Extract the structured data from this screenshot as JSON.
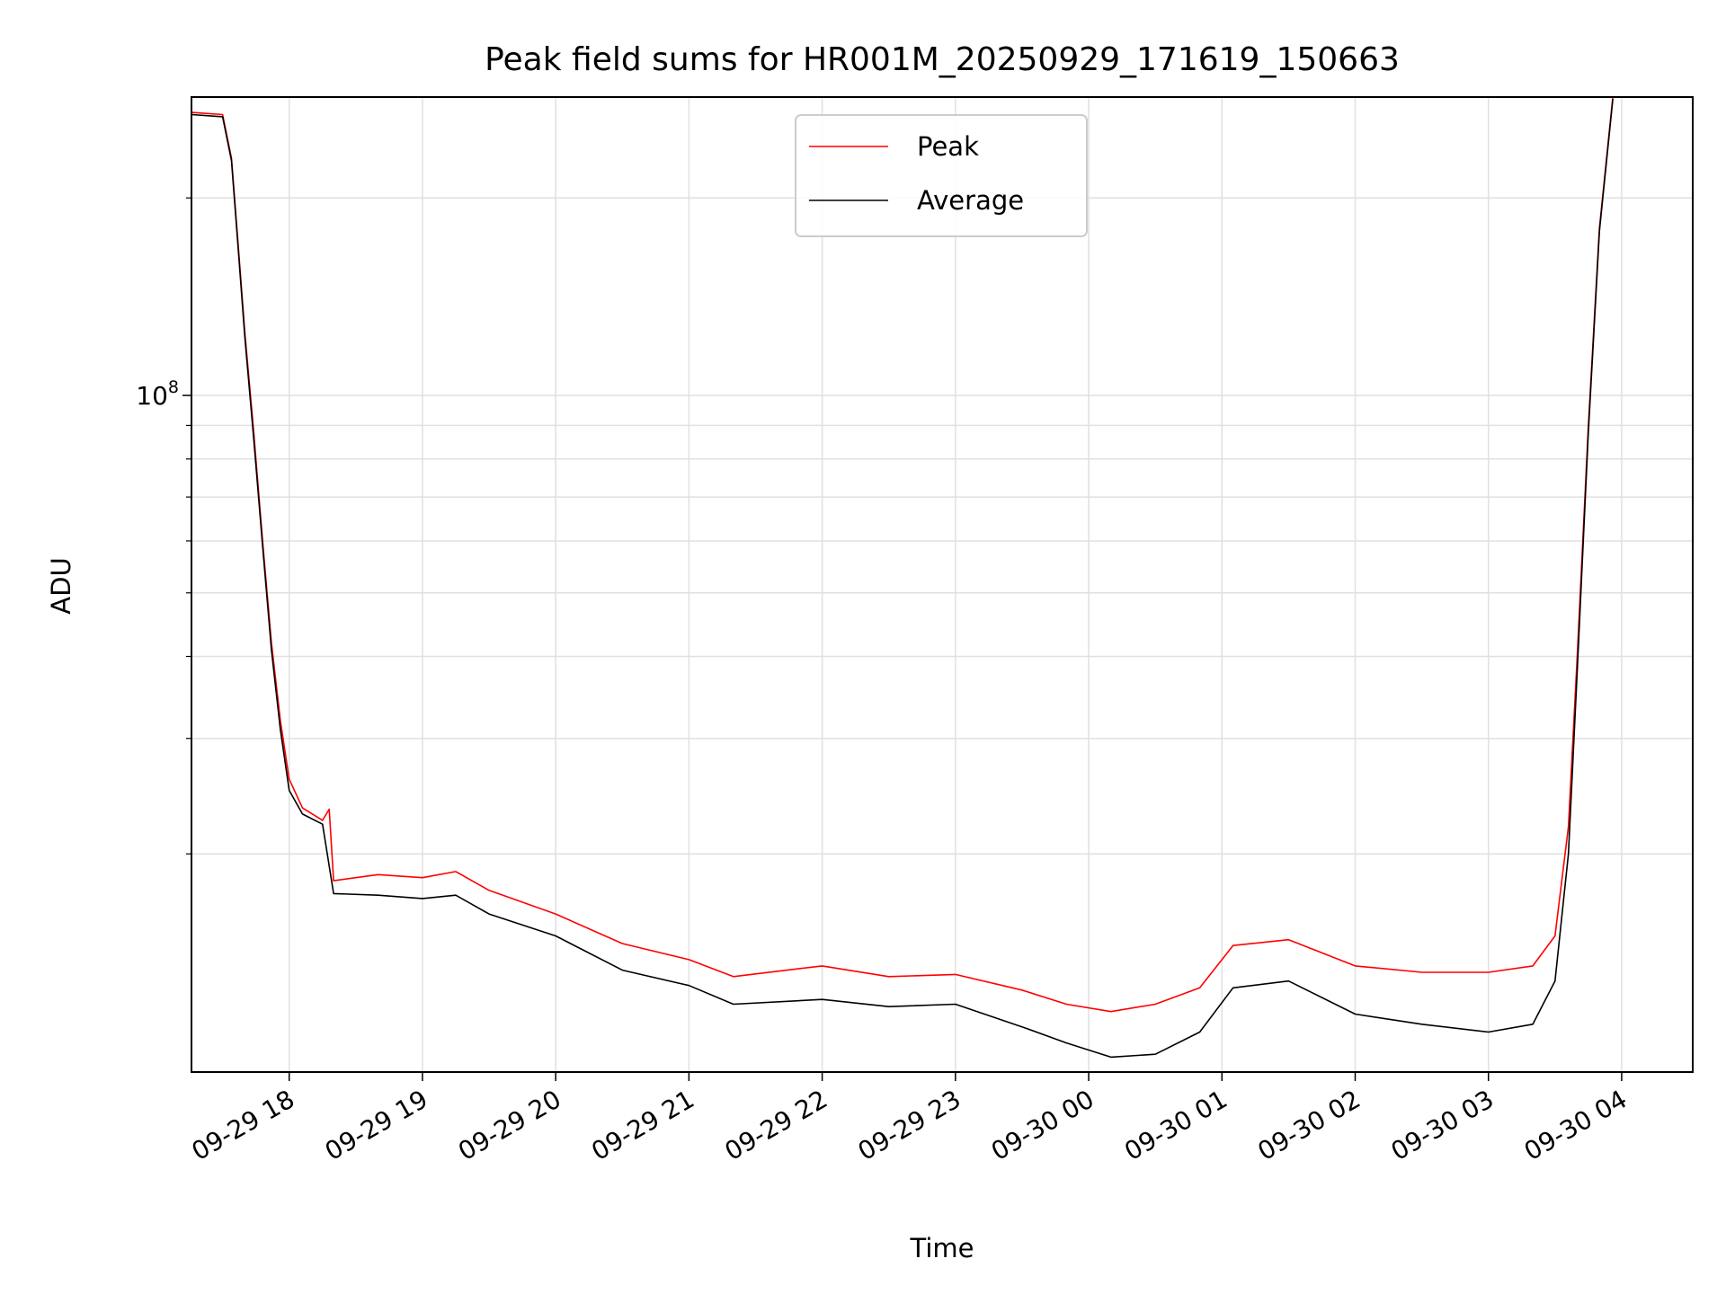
{
  "chart_data": {
    "type": "line",
    "title": "Peak field sums for HR001M_20250929_171619_150663",
    "xlabel": "Time",
    "ylabel": "ADU",
    "x_tick_labels": [
      "09-29 18",
      "09-29 19",
      "09-29 20",
      "09-29 21",
      "09-29 22",
      "09-29 23",
      "09-30 00",
      "09-30 01",
      "09-30 02",
      "09-30 03",
      "09-30 04"
    ],
    "y_tick_labels": [
      {
        "base": "10",
        "exp": "8"
      }
    ],
    "y_scale": "log",
    "ylim": [
      9300000.0,
      285000000.0
    ],
    "xlim": [
      "2025-09-29 17:16",
      "2025-09-30 04:32"
    ],
    "grid": true,
    "legend_position": "upper center",
    "colors": {
      "peak": "#ff0000",
      "average": "#000000",
      "grid": "#e0e0e0"
    },
    "series": [
      {
        "name": "Peak",
        "color": "#ff0000",
        "points": [
          [
            "2025-09-29 17:16",
            270000000
          ],
          [
            "2025-09-29 17:30",
            268000000
          ],
          [
            "2025-09-29 17:34",
            230000000
          ],
          [
            "2025-09-29 17:37",
            170000000
          ],
          [
            "2025-09-29 17:40",
            125000000
          ],
          [
            "2025-09-29 17:44",
            88000000
          ],
          [
            "2025-09-29 17:48",
            60000000
          ],
          [
            "2025-09-29 17:52",
            42000000
          ],
          [
            "2025-09-29 17:56",
            32000000
          ],
          [
            "2025-09-29 18:00",
            26000000
          ],
          [
            "2025-09-29 18:06",
            23500000
          ],
          [
            "2025-09-29 18:15",
            22500000
          ],
          [
            "2025-09-29 18:18",
            23400000
          ],
          [
            "2025-09-29 18:20",
            18200000
          ],
          [
            "2025-09-29 18:40",
            18600000
          ],
          [
            "2025-09-29 19:00",
            18400000
          ],
          [
            "2025-09-29 19:15",
            18800000
          ],
          [
            "2025-09-29 19:30",
            17600000
          ],
          [
            "2025-09-29 20:00",
            16200000
          ],
          [
            "2025-09-29 20:30",
            14600000
          ],
          [
            "2025-09-29 21:00",
            13800000
          ],
          [
            "2025-09-29 21:20",
            13000000
          ],
          [
            "2025-09-29 22:00",
            13500000
          ],
          [
            "2025-09-29 22:30",
            13000000
          ],
          [
            "2025-09-29 23:00",
            13100000
          ],
          [
            "2025-09-29 23:30",
            12400000
          ],
          [
            "2025-09-29 23:50",
            11800000
          ],
          [
            "2025-09-30 00:10",
            11500000
          ],
          [
            "2025-09-30 00:30",
            11800000
          ],
          [
            "2025-09-30 00:50",
            12500000
          ],
          [
            "2025-09-30 01:05",
            14500000
          ],
          [
            "2025-09-30 01:30",
            14800000
          ],
          [
            "2025-09-30 02:00",
            13500000
          ],
          [
            "2025-09-30 02:30",
            13200000
          ],
          [
            "2025-09-30 03:00",
            13200000
          ],
          [
            "2025-09-30 03:20",
            13500000
          ],
          [
            "2025-09-30 03:30",
            15000000
          ],
          [
            "2025-09-30 03:36",
            22000000
          ],
          [
            "2025-09-30 03:40",
            40000000
          ],
          [
            "2025-09-30 03:45",
            90000000
          ],
          [
            "2025-09-30 03:50",
            180000000
          ],
          [
            "2025-09-30 03:56",
            285000000
          ]
        ]
      },
      {
        "name": "Average",
        "color": "#000000",
        "points": [
          [
            "2025-09-29 17:16",
            268000000
          ],
          [
            "2025-09-29 17:30",
            266000000
          ],
          [
            "2025-09-29 17:34",
            228000000
          ],
          [
            "2025-09-29 17:37",
            168000000
          ],
          [
            "2025-09-29 17:40",
            123000000
          ],
          [
            "2025-09-29 17:44",
            86000000
          ],
          [
            "2025-09-29 17:48",
            59000000
          ],
          [
            "2025-09-29 17:52",
            41000000
          ],
          [
            "2025-09-29 17:56",
            31000000
          ],
          [
            "2025-09-29 18:00",
            25000000
          ],
          [
            "2025-09-29 18:06",
            23000000
          ],
          [
            "2025-09-29 18:15",
            22200000
          ],
          [
            "2025-09-29 18:20",
            17400000
          ],
          [
            "2025-09-29 18:40",
            17300000
          ],
          [
            "2025-09-29 19:00",
            17100000
          ],
          [
            "2025-09-29 19:15",
            17300000
          ],
          [
            "2025-09-29 19:30",
            16200000
          ],
          [
            "2025-09-29 20:00",
            15000000
          ],
          [
            "2025-09-29 20:30",
            13300000
          ],
          [
            "2025-09-29 21:00",
            12600000
          ],
          [
            "2025-09-29 21:20",
            11800000
          ],
          [
            "2025-09-29 22:00",
            12000000
          ],
          [
            "2025-09-29 22:30",
            11700000
          ],
          [
            "2025-09-29 23:00",
            11800000
          ],
          [
            "2025-09-29 23:30",
            10900000
          ],
          [
            "2025-09-29 23:50",
            10300000
          ],
          [
            "2025-09-30 00:10",
            9800000
          ],
          [
            "2025-09-30 00:30",
            9900000
          ],
          [
            "2025-09-30 00:50",
            10700000
          ],
          [
            "2025-09-30 01:05",
            12500000
          ],
          [
            "2025-09-30 01:30",
            12800000
          ],
          [
            "2025-09-30 02:00",
            11400000
          ],
          [
            "2025-09-30 02:30",
            11000000
          ],
          [
            "2025-09-30 03:00",
            10700000
          ],
          [
            "2025-09-30 03:20",
            11000000
          ],
          [
            "2025-09-30 03:30",
            12800000
          ],
          [
            "2025-09-30 03:36",
            20000000
          ],
          [
            "2025-09-30 03:40",
            38000000
          ],
          [
            "2025-09-30 03:45",
            88000000
          ],
          [
            "2025-09-30 03:50",
            178000000
          ],
          [
            "2025-09-30 03:56",
            283000000
          ]
        ]
      }
    ]
  }
}
